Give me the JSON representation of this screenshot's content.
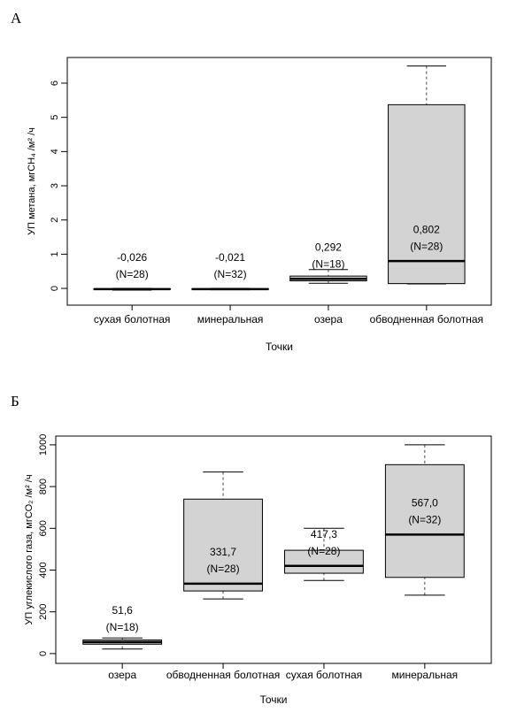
{
  "chart_data": [
    {
      "type": "box",
      "panel": "А",
      "ylabel": "УП метана, мгСН₄ /м² /ч",
      "xlabel": "Точки",
      "categories": [
        "сухая болотная",
        "минеральная",
        "озера",
        "обводненная болотная"
      ],
      "whisker_low": [
        -0.05,
        -0.04,
        0.15,
        0.13
      ],
      "q1": [
        -0.03,
        -0.03,
        0.22,
        0.14
      ],
      "median": [
        -0.02,
        -0.02,
        0.28,
        0.8
      ],
      "q3": [
        -0.01,
        -0.01,
        0.36,
        5.37
      ],
      "whisker_high": [
        0.0,
        0.0,
        0.55,
        6.5
      ],
      "means": [
        -0.026,
        -0.021,
        0.292,
        0.802
      ],
      "mean_labels": [
        "-0,026",
        "-0,021",
        "0,292",
        "0,802"
      ],
      "n_labels": [
        "(N=28)",
        "(N=32)",
        "(N=18)",
        "(N=28)"
      ],
      "ylim": [
        -0.49,
        6.75
      ],
      "yticks": [
        0,
        1,
        2,
        3,
        4,
        5,
        6
      ],
      "color": "#d3d3d3"
    },
    {
      "type": "box",
      "panel": "Б",
      "ylabel": "УП углекислого газа, мгСО₂ /м² /ч",
      "xlabel": "Точки",
      "categories": [
        "озера",
        "обводненная болотная",
        "сухая болотная",
        "минеральная"
      ],
      "whisker_low": [
        22,
        262,
        350,
        280
      ],
      "q1": [
        45,
        300,
        385,
        365
      ],
      "median": [
        55,
        335,
        420,
        570
      ],
      "q3": [
        65,
        740,
        495,
        905
      ],
      "whisker_high": [
        75,
        870,
        600,
        1000
      ],
      "means": [
        51.6,
        331.7,
        417.3,
        567.0
      ],
      "mean_labels": [
        "51,6",
        "331,7",
        "417,3",
        "567,0"
      ],
      "n_labels": [
        "(N=18)",
        "(N=28)",
        "(N=28)",
        "(N=32)"
      ],
      "ylim": [
        -47,
        1042
      ],
      "yticks": [
        0,
        200,
        400,
        600,
        800,
        1000
      ],
      "color": "#d3d3d3"
    }
  ]
}
